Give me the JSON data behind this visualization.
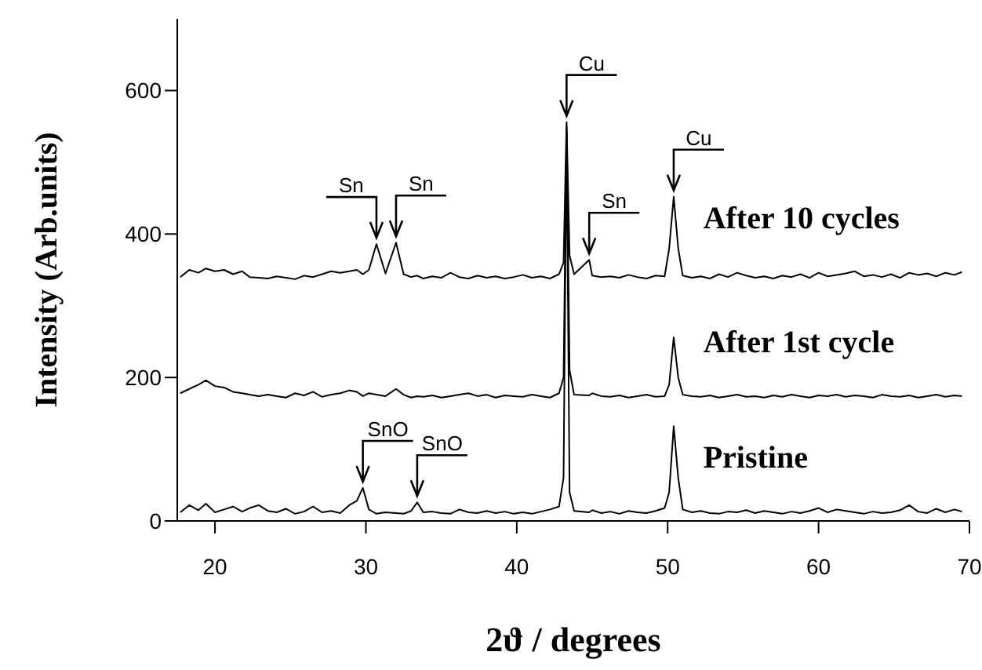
{
  "chart_data": {
    "type": "line",
    "xlabel": "2ϑ / degrees",
    "ylabel": "Intensity (Arb.units)",
    "xlim": [
      17.5,
      70
    ],
    "xticks": [
      20,
      30,
      40,
      50,
      60,
      70
    ],
    "ylim": [
      0,
      700
    ],
    "yticks": [
      0,
      200,
      400,
      600
    ],
    "grid": false,
    "legend": "right",
    "marker": "none",
    "x": [
      17.7,
      18.3,
      18.9,
      19.4,
      20.0,
      20.6,
      21.2,
      21.8,
      22.3,
      22.9,
      23.5,
      24.1,
      24.7,
      25.3,
      25.9,
      26.5,
      27.1,
      27.7,
      28.3,
      28.9,
      29.4,
      29.8,
      30.2,
      30.7,
      31.3,
      32.0,
      32.5,
      33.0,
      33.4,
      33.8,
      34.4,
      35.0,
      35.6,
      36.2,
      36.8,
      37.4,
      38.0,
      38.6,
      39.2,
      39.8,
      40.4,
      41.0,
      41.6,
      42.2,
      42.8,
      43.1,
      43.3,
      43.5,
      43.8,
      44.8,
      45.0,
      45.6,
      46.2,
      46.8,
      47.4,
      48.0,
      48.6,
      49.2,
      49.8,
      50.1,
      50.4,
      50.7,
      51.0,
      51.6,
      52.2,
      52.8,
      53.4,
      54.0,
      54.6,
      55.2,
      55.8,
      56.4,
      57.0,
      57.6,
      58.2,
      58.8,
      59.4,
      60.0,
      60.6,
      61.2,
      61.8,
      62.4,
      63.0,
      63.6,
      64.2,
      64.8,
      65.4,
      66.0,
      66.6,
      67.2,
      67.8,
      68.4,
      69.0,
      69.5
    ],
    "series": [
      {
        "name": "After 10 cycles",
        "color": "#000000",
        "values": [
          340,
          350,
          346,
          352,
          348,
          350,
          344,
          348,
          340,
          339,
          338,
          341,
          339,
          337,
          342,
          340,
          344,
          348,
          346,
          348,
          350,
          344,
          350,
          386,
          345,
          388,
          344,
          340,
          342,
          338,
          341,
          339,
          346,
          340,
          338,
          342,
          339,
          341,
          338,
          340,
          343,
          339,
          341,
          338,
          344,
          360,
          556,
          370,
          344,
          364,
          342,
          340,
          341,
          339,
          343,
          340,
          338,
          342,
          341,
          380,
          452,
          380,
          342,
          339,
          341,
          338,
          344,
          340,
          346,
          342,
          339,
          341,
          338,
          342,
          340,
          344,
          339,
          346,
          341,
          343,
          345,
          348,
          341,
          343,
          340,
          344,
          339,
          346,
          343,
          345,
          341,
          346,
          343,
          347
        ]
      },
      {
        "name": "After 1st cycle",
        "color": "#000000",
        "values": [
          178,
          184,
          190,
          196,
          188,
          186,
          180,
          178,
          176,
          174,
          176,
          174,
          172,
          178,
          175,
          180,
          173,
          176,
          178,
          182,
          180,
          174,
          178,
          176,
          174,
          184,
          176,
          172,
          174,
          173,
          175,
          172,
          174,
          176,
          178,
          174,
          176,
          172,
          175,
          174,
          173,
          176,
          174,
          172,
          178,
          200,
          550,
          210,
          176,
          175,
          178,
          174,
          173,
          175,
          172,
          174,
          176,
          173,
          174,
          190,
          256,
          200,
          176,
          174,
          173,
          175,
          172,
          174,
          176,
          173,
          174,
          172,
          175,
          173,
          176,
          174,
          172,
          175,
          174,
          176,
          173,
          175,
          174,
          172,
          176,
          174,
          173,
          175,
          172,
          174,
          176,
          173,
          175,
          174
        ]
      },
      {
        "name": "Pristine",
        "color": "#000000",
        "values": [
          12,
          22,
          15,
          24,
          12,
          16,
          20,
          13,
          18,
          22,
          14,
          12,
          17,
          10,
          13,
          20,
          12,
          14,
          11,
          22,
          28,
          46,
          16,
          10,
          12,
          11,
          10,
          14,
          26,
          12,
          13,
          11,
          10,
          16,
          12,
          11,
          14,
          11,
          13,
          10,
          12,
          10,
          13,
          16,
          20,
          60,
          540,
          40,
          14,
          12,
          15,
          11,
          13,
          10,
          14,
          12,
          11,
          14,
          18,
          40,
          132,
          60,
          16,
          12,
          14,
          11,
          10,
          13,
          12,
          15,
          11,
          14,
          12,
          10,
          13,
          11,
          14,
          18,
          12,
          16,
          14,
          12,
          10,
          13,
          11,
          12,
          15,
          22,
          13,
          11,
          17,
          12,
          16,
          13
        ]
      }
    ],
    "annotations": [
      {
        "text": "Sn",
        "x": 30.7,
        "y": 386
      },
      {
        "text": "Sn",
        "x": 32.0,
        "y": 388
      },
      {
        "text": "Cu",
        "x": 43.3,
        "y": 556
      },
      {
        "text": "Sn",
        "x": 44.8,
        "y": 364
      },
      {
        "text": "Cu",
        "x": 50.4,
        "y": 452
      },
      {
        "text": "SnO",
        "x": 29.8,
        "y": 46
      },
      {
        "text": "SnO",
        "x": 33.4,
        "y": 26
      }
    ]
  }
}
